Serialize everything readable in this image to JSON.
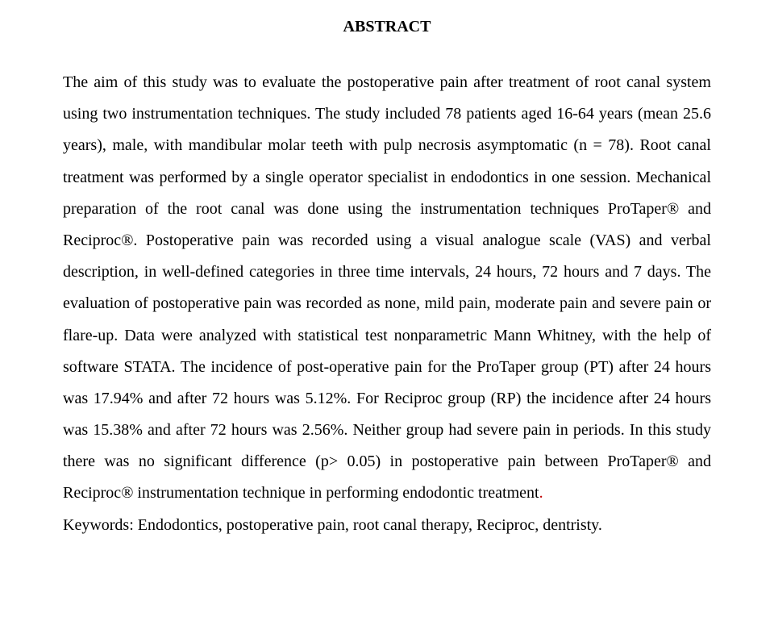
{
  "title": "ABSTRACT",
  "body": "The aim of this study was to evaluate the postoperative pain after treatment of root canal system using two instrumentation techniques. The study included 78 patients aged 16-64 years (mean 25.6 years), male, with mandibular molar teeth with pulp necrosis asymptomatic (n = 78). Root canal treatment was performed by a single operator specialist in endodontics in one session. Mechanical preparation of the root canal was done using the instrumentation techniques ProTaper® and Reciproc®. Postoperative pain was recorded using a visual analogue scale (VAS) and verbal description, in well-defined categories in three time intervals, 24 hours, 72 hours and 7 days. The evaluation of postoperative pain was recorded as none, mild pain, moderate pain and severe pain or flare-up. Data were analyzed with statistical test nonparametric Mann Whitney, with the help of software STATA. The incidence of post-operative pain for the ProTaper group (PT) after 24 hours was 17.94% and after 72 hours was 5.12%. For Reciproc group (RP) the incidence after 24 hours was 15.38% and after 72 hours was 2.56%. Neither group had severe pain in periods. In this study there was no significant difference (p> 0.05) in postoperative pain between ProTaper® and Reciproc® instrumentation technique in performing endodontic treatment",
  "body_red": ".",
  "keywords": "Keywords: Endodontics, postoperative pain, root canal therapy, Reciproc, dentristy."
}
